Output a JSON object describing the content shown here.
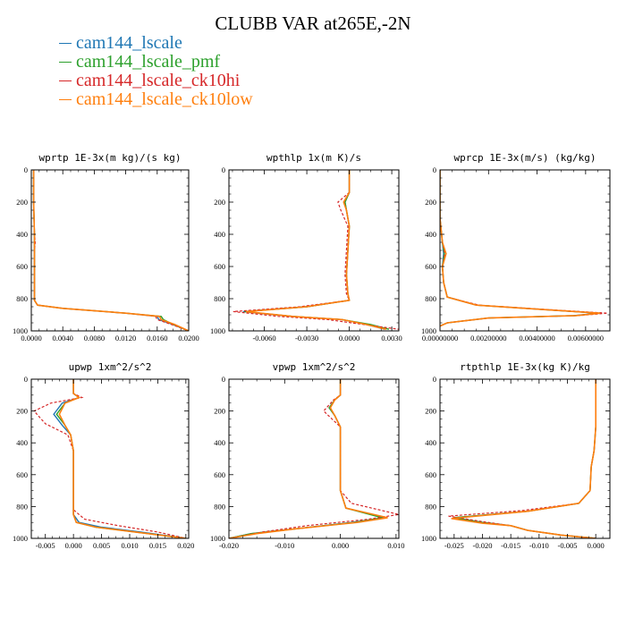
{
  "figure": {
    "title": "CLUBB VAR at265E,-2N"
  },
  "colors": {
    "cam144_lscale": "#1f77b4",
    "cam144_lscale_pmf": "#2ca02c",
    "cam144_lscale_ck10hi": "#d62728",
    "cam144_lscale_ck10low": "#ff7f0e"
  },
  "legend": [
    {
      "name": "cam144_lscale",
      "color": "#1f77b4"
    },
    {
      "name": "cam144_lscale_pmf",
      "color": "#2ca02c"
    },
    {
      "name": "cam144_lscale_ck10hi",
      "color": "#d62728"
    },
    {
      "name": "cam144_lscale_ck10low",
      "color": "#ff7f0e"
    }
  ],
  "chart_data": [
    {
      "type": "line",
      "title": "wprtp  1E-3x(m kg)/(s kg)",
      "xlim": [
        0.0,
        0.02
      ],
      "ylim": [
        1000,
        0
      ],
      "xticks": [
        "0.0000",
        "0.0040",
        "0.0080",
        "0.0120",
        "0.0160",
        "0.0200"
      ],
      "xtick_values": [
        0.0,
        0.004,
        0.008,
        0.012,
        0.016,
        0.02
      ],
      "yticks": [
        "0",
        "200",
        "400",
        "600",
        "800",
        "1000"
      ],
      "ytick_values": [
        0,
        200,
        400,
        600,
        800,
        1000
      ],
      "series": [
        {
          "name": "cam144_lscale",
          "x": [
            0.0003,
            0.0003,
            0.0004,
            0.0004,
            0.0004,
            0.0004,
            0.0004,
            0.0008,
            0.004,
            0.012,
            0.016,
            0.0162,
            0.018,
            0.02
          ],
          "y": [
            0,
            200,
            400,
            450,
            500,
            700,
            810,
            840,
            860,
            890,
            910,
            930,
            960,
            1000
          ]
        },
        {
          "name": "cam144_lscale_pmf",
          "x": [
            0.0003,
            0.0003,
            0.0004,
            0.0004,
            0.0004,
            0.0004,
            0.0004,
            0.0008,
            0.004,
            0.012,
            0.0165,
            0.0168,
            0.018,
            0.02
          ],
          "y": [
            0,
            200,
            400,
            450,
            500,
            700,
            810,
            840,
            860,
            890,
            910,
            930,
            960,
            1000
          ]
        },
        {
          "name": "cam144_lscale_ck10hi",
          "x": [
            0.0003,
            0.0003,
            0.0004,
            0.0005,
            0.0004,
            0.0004,
            0.0004,
            0.0008,
            0.004,
            0.012,
            0.0158,
            0.016,
            0.0178,
            0.02
          ],
          "y": [
            0,
            200,
            400,
            450,
            500,
            700,
            810,
            840,
            860,
            890,
            910,
            930,
            960,
            1000
          ]
        },
        {
          "name": "cam144_lscale_ck10low",
          "x": [
            0.0003,
            0.0003,
            0.0004,
            0.0004,
            0.0004,
            0.0004,
            0.0004,
            0.0008,
            0.004,
            0.012,
            0.0163,
            0.0165,
            0.0182,
            0.02
          ],
          "y": [
            0,
            200,
            400,
            450,
            500,
            700,
            810,
            840,
            860,
            890,
            910,
            930,
            960,
            1000
          ]
        }
      ]
    },
    {
      "type": "line",
      "title": "wpthlp  1x(m K)/s",
      "xlim": [
        -0.0085,
        0.0035
      ],
      "ylim": [
        1000,
        0
      ],
      "xticks": [
        "-0.0060",
        "-0.0030",
        "0.0000",
        "0.0030"
      ],
      "xtick_values": [
        -0.006,
        -0.003,
        0.0,
        0.003
      ],
      "yticks": [
        "0",
        "200",
        "400",
        "600",
        "800",
        "1000"
      ],
      "ytick_values": [
        0,
        200,
        400,
        600,
        800,
        1000
      ],
      "series": [
        {
          "name": "cam144_lscale",
          "x": [
            0.0,
            0.0,
            -0.0003,
            -0.0002,
            0.0,
            -0.0001,
            -0.0002,
            -0.0001,
            0.0,
            -0.003,
            -0.0075,
            -0.004,
            -0.0005,
            0.0012,
            0.0025
          ],
          "y": [
            0,
            140,
            200,
            250,
            350,
            500,
            650,
            770,
            810,
            850,
            880,
            910,
            930,
            960,
            990
          ]
        },
        {
          "name": "cam144_lscale_pmf",
          "x": [
            0.0,
            0.0,
            -0.0003,
            -0.0002,
            0.0,
            -0.0001,
            -0.0002,
            -0.0001,
            0.0,
            -0.003,
            -0.0074,
            -0.004,
            -0.0005,
            0.0015,
            0.0028
          ],
          "y": [
            0,
            140,
            200,
            250,
            350,
            500,
            650,
            770,
            810,
            850,
            880,
            910,
            930,
            960,
            990
          ]
        },
        {
          "name": "cam144_lscale_ck10hi",
          "x": [
            0.0,
            0.0,
            -0.0008,
            -0.0006,
            -0.0001,
            -0.0002,
            -0.0003,
            -0.0002,
            0.0,
            -0.0035,
            -0.0082,
            -0.005,
            -0.0015,
            0.001,
            0.0035
          ],
          "y": [
            0,
            140,
            200,
            250,
            350,
            500,
            650,
            770,
            810,
            850,
            880,
            910,
            930,
            960,
            990
          ]
        },
        {
          "name": "cam144_lscale_ck10low",
          "x": [
            0.0,
            0.0,
            -0.0004,
            -0.0002,
            0.0,
            -0.0001,
            -0.0002,
            -0.0001,
            0.0,
            -0.003,
            -0.0073,
            -0.004,
            -0.0005,
            0.0012,
            0.0026
          ],
          "y": [
            0,
            140,
            200,
            250,
            350,
            500,
            650,
            770,
            810,
            850,
            880,
            910,
            930,
            960,
            990
          ]
        }
      ]
    },
    {
      "type": "line",
      "title": "wprcp  1E-3x(m/s) (kg/kg)",
      "xlim": [
        0.0,
        0.007
      ],
      "ylim": [
        1000,
        0
      ],
      "xticks": [
        "0.00000000",
        "0.00200000",
        "0.00400000",
        "0.00600000"
      ],
      "xtick_values": [
        0.0,
        0.002,
        0.004,
        0.006
      ],
      "yticks": [
        "0",
        "200",
        "400",
        "600",
        "800",
        "1000"
      ],
      "ytick_values": [
        0,
        200,
        400,
        600,
        800,
        1000
      ],
      "series": [
        {
          "name": "cam144_lscale",
          "x": [
            0.0,
            0.0,
            0.0001,
            0.00015,
            0.0001,
            0.00015,
            0.0003,
            0.0015,
            0.0045,
            0.0065,
            0.0055,
            0.002,
            0.0003,
            0.0
          ],
          "y": [
            0,
            300,
            450,
            520,
            600,
            700,
            790,
            840,
            870,
            890,
            905,
            920,
            950,
            970
          ]
        },
        {
          "name": "cam144_lscale_pmf",
          "x": [
            0.0,
            0.0,
            0.0001,
            0.00018,
            0.0001,
            0.00015,
            0.0003,
            0.0015,
            0.0045,
            0.0066,
            0.0056,
            0.002,
            0.0003,
            0.0
          ],
          "y": [
            0,
            300,
            450,
            520,
            600,
            700,
            790,
            840,
            870,
            890,
            905,
            920,
            950,
            970
          ]
        },
        {
          "name": "cam144_lscale_ck10hi",
          "x": [
            0.0,
            0.0,
            0.0001,
            0.0002,
            0.0001,
            0.00015,
            0.0003,
            0.0016,
            0.0047,
            0.0069,
            0.0057,
            0.002,
            0.0003,
            0.0
          ],
          "y": [
            0,
            300,
            450,
            520,
            600,
            700,
            790,
            840,
            870,
            890,
            905,
            920,
            950,
            970
          ]
        },
        {
          "name": "cam144_lscale_ck10low",
          "x": [
            0.0,
            0.0,
            0.0001,
            0.00025,
            0.0001,
            0.00015,
            0.0003,
            0.0015,
            0.0045,
            0.0066,
            0.0056,
            0.002,
            0.0003,
            0.0
          ],
          "y": [
            0,
            300,
            450,
            520,
            600,
            700,
            790,
            840,
            870,
            890,
            905,
            920,
            950,
            970
          ]
        }
      ]
    },
    {
      "type": "line",
      "title": "upwp  1xm^2/s^2",
      "xlim": [
        -0.0075,
        0.0205
      ],
      "ylim": [
        1000,
        0
      ],
      "xticks": [
        "-0.005",
        "0.000",
        "0.005",
        "0.010",
        "0.015",
        "0.020"
      ],
      "xtick_values": [
        -0.005,
        0.0,
        0.005,
        0.01,
        0.015,
        0.02
      ],
      "yticks": [
        "0",
        "200",
        "400",
        "600",
        "800",
        "1000"
      ],
      "ytick_values": [
        0,
        200,
        400,
        600,
        800,
        1000
      ],
      "series": [
        {
          "name": "cam144_lscale",
          "x": [
            0.0,
            0.0,
            0.001,
            -0.002,
            -0.0035,
            -0.002,
            -0.0005,
            0.0,
            0.0,
            0.0,
            0.001,
            0.005,
            0.012,
            0.02
          ],
          "y": [
            0,
            90,
            115,
            150,
            220,
            290,
            350,
            450,
            600,
            850,
            900,
            930,
            960,
            1000
          ]
        },
        {
          "name": "cam144_lscale_pmf",
          "x": [
            0.0,
            0.0,
            0.001,
            -0.0015,
            -0.003,
            -0.0015,
            -0.0005,
            0.0,
            0.0,
            0.0,
            0.0005,
            0.004,
            0.011,
            0.02
          ],
          "y": [
            0,
            90,
            115,
            150,
            220,
            290,
            350,
            450,
            600,
            850,
            900,
            930,
            960,
            1000
          ]
        },
        {
          "name": "cam144_lscale_ck10hi",
          "x": [
            0.0,
            0.0,
            0.0015,
            -0.004,
            -0.007,
            -0.005,
            -0.001,
            0.0,
            0.0,
            0.0,
            0.002,
            0.008,
            0.015,
            0.02
          ],
          "y": [
            0,
            90,
            115,
            150,
            200,
            280,
            350,
            450,
            600,
            820,
            880,
            920,
            960,
            1000
          ]
        },
        {
          "name": "cam144_lscale_ck10low",
          "x": [
            0.0,
            0.0,
            0.001,
            -0.0015,
            -0.0025,
            -0.0015,
            -0.0005,
            0.0,
            0.0,
            0.0,
            0.0005,
            0.004,
            0.011,
            0.02
          ],
          "y": [
            0,
            90,
            115,
            150,
            220,
            290,
            350,
            450,
            600,
            850,
            900,
            930,
            960,
            1000
          ]
        }
      ]
    },
    {
      "type": "line",
      "title": "vpwp  1xm^2/s^2",
      "xlim": [
        -0.02,
        0.0105
      ],
      "ylim": [
        1000,
        0
      ],
      "xticks": [
        "-0.020",
        "-0.010",
        "0.000",
        "0.010"
      ],
      "xtick_values": [
        -0.02,
        -0.01,
        0.0,
        0.01
      ],
      "yticks": [
        "0",
        "200",
        "400",
        "600",
        "800",
        "1000"
      ],
      "ytick_values": [
        0,
        200,
        400,
        600,
        800,
        1000
      ],
      "series": [
        {
          "name": "cam144_lscale",
          "x": [
            0.0,
            0.0,
            -0.001,
            -0.002,
            -0.001,
            0.0,
            0.0,
            0.0,
            0.001,
            0.008,
            0.002,
            -0.008,
            -0.016,
            -0.02
          ],
          "y": [
            0,
            100,
            130,
            180,
            230,
            300,
            500,
            700,
            810,
            870,
            900,
            940,
            970,
            1000
          ]
        },
        {
          "name": "cam144_lscale_pmf",
          "x": [
            0.0,
            0.0,
            -0.001,
            -0.002,
            -0.001,
            0.0,
            0.0,
            0.0,
            0.001,
            0.0075,
            0.0025,
            -0.008,
            -0.016,
            -0.02
          ],
          "y": [
            0,
            100,
            130,
            180,
            230,
            300,
            500,
            700,
            810,
            870,
            900,
            940,
            970,
            1000
          ]
        },
        {
          "name": "cam144_lscale_ck10hi",
          "x": [
            0.0,
            0.0,
            -0.0012,
            -0.003,
            -0.0015,
            0.0,
            0.0,
            0.0,
            0.002,
            0.0105,
            0.005,
            -0.006,
            -0.014,
            -0.02
          ],
          "y": [
            0,
            100,
            130,
            200,
            250,
            300,
            500,
            700,
            780,
            850,
            880,
            920,
            960,
            1000
          ]
        },
        {
          "name": "cam144_lscale_ck10low",
          "x": [
            0.0,
            0.0,
            -0.001,
            -0.0018,
            -0.001,
            0.0,
            0.0,
            0.0,
            0.001,
            0.0085,
            0.003,
            -0.008,
            -0.015,
            -0.02
          ],
          "y": [
            0,
            100,
            130,
            180,
            230,
            300,
            500,
            700,
            810,
            870,
            900,
            940,
            970,
            1000
          ]
        }
      ]
    },
    {
      "type": "line",
      "title": "rtpthlp  1E-3x(kg K)/kg",
      "xlim": [
        -0.0275,
        0.0025
      ],
      "ylim": [
        1000,
        0
      ],
      "xticks": [
        "-0.025",
        "-0.020",
        "-0.015",
        "-0.010",
        "-0.005",
        "0.000"
      ],
      "xtick_values": [
        -0.025,
        -0.02,
        -0.015,
        -0.01,
        -0.005,
        0.0
      ],
      "yticks": [
        "0",
        "200",
        "400",
        "600",
        "800",
        "1000"
      ],
      "ytick_values": [
        0,
        200,
        400,
        600,
        800,
        1000
      ],
      "series": [
        {
          "name": "cam144_lscale",
          "x": [
            0.0,
            0.0,
            -0.0003,
            -0.0008,
            -0.001,
            -0.003,
            -0.012,
            -0.025,
            -0.02,
            -0.015,
            -0.012,
            -0.006,
            0.0
          ],
          "y": [
            0,
            300,
            450,
            550,
            700,
            780,
            830,
            870,
            900,
            920,
            950,
            980,
            1000
          ]
        },
        {
          "name": "cam144_lscale_pmf",
          "x": [
            0.0,
            0.0,
            -0.0003,
            -0.0008,
            -0.001,
            -0.003,
            -0.012,
            -0.025,
            -0.02,
            -0.015,
            -0.012,
            -0.006,
            0.0
          ],
          "y": [
            0,
            300,
            450,
            550,
            700,
            780,
            830,
            870,
            900,
            920,
            950,
            980,
            1000
          ]
        },
        {
          "name": "cam144_lscale_ck10hi",
          "x": [
            0.0,
            0.0,
            -0.0003,
            -0.0008,
            -0.001,
            -0.003,
            -0.013,
            -0.026,
            -0.02,
            -0.015,
            -0.012,
            -0.006,
            0.0
          ],
          "y": [
            0,
            300,
            450,
            550,
            700,
            780,
            825,
            860,
            895,
            920,
            950,
            980,
            1000
          ]
        },
        {
          "name": "cam144_lscale_ck10low",
          "x": [
            0.0,
            0.0,
            -0.0003,
            -0.0008,
            -0.001,
            -0.003,
            -0.012,
            -0.0255,
            -0.02,
            -0.015,
            -0.012,
            -0.006,
            0.0
          ],
          "y": [
            0,
            300,
            450,
            550,
            700,
            780,
            830,
            875,
            905,
            920,
            950,
            980,
            1000
          ]
        }
      ]
    }
  ]
}
